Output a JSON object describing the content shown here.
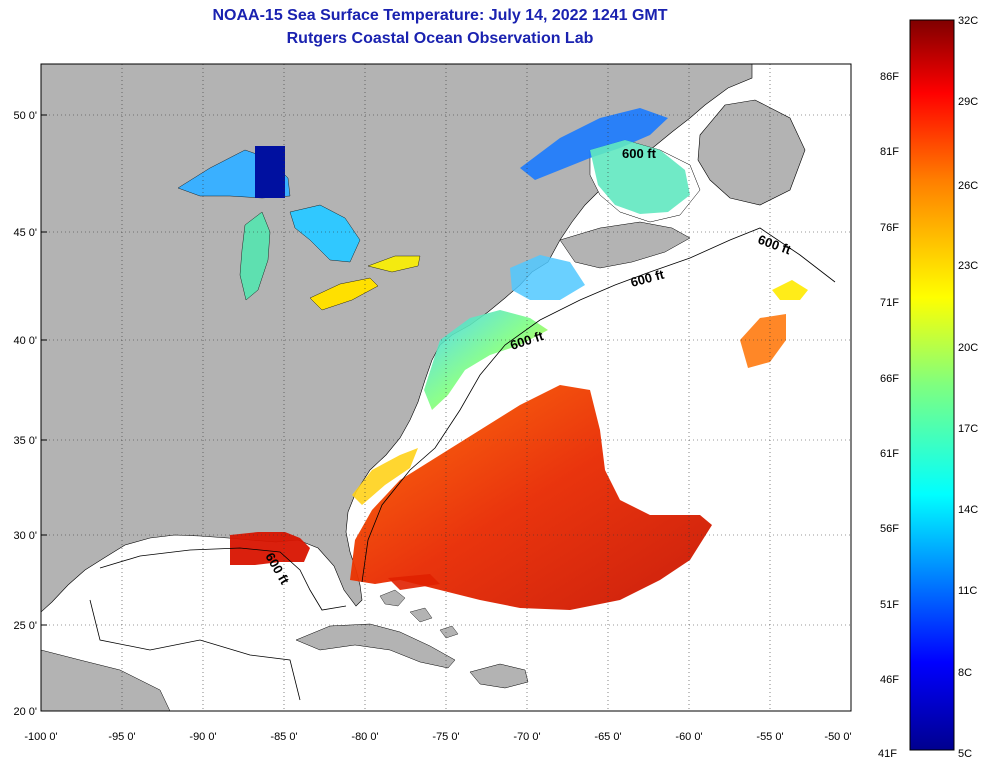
{
  "title": {
    "line1": "NOAA-15 Sea Surface Temperature:  July 14, 2022 1241 GMT",
    "line2": "Rutgers Coastal Ocean Observation Lab"
  },
  "map": {
    "lon_labels": [
      "-100 0'",
      "-95 0'",
      "-90 0'",
      "-85 0'",
      "-80 0'",
      "-75 0'",
      "-70 0'",
      "-65 0'",
      "-60 0'",
      "-55 0'",
      "-50 0'"
    ],
    "lat_labels": [
      "50 0'",
      "45 0'",
      "40 0'",
      "35 0'",
      "30 0'",
      "25 0'",
      "20 0'"
    ],
    "lon_range": [
      -100,
      -50
    ],
    "lat_range": [
      20,
      52
    ],
    "land_color": "#b3b3b3",
    "no_data_color": "#ffffff",
    "isobath_labels": [
      "600 ft",
      "600 ft",
      "600 ft",
      "600 ft",
      "600 ft"
    ]
  },
  "colorbar": {
    "celsius_labels": [
      "32C",
      "29C",
      "26C",
      "23C",
      "20C",
      "17C",
      "14C",
      "11C",
      "8C",
      "5C"
    ],
    "fahrenheit_labels": [
      "86F",
      "81F",
      "76F",
      "71F",
      "66F",
      "61F",
      "56F",
      "51F",
      "46F",
      "41F"
    ],
    "colors": [
      "#00008f",
      "#0000ff",
      "#007fff",
      "#00ffff",
      "#7fff7f",
      "#ffff00",
      "#ff7f00",
      "#ff0000",
      "#7f0000"
    ]
  }
}
